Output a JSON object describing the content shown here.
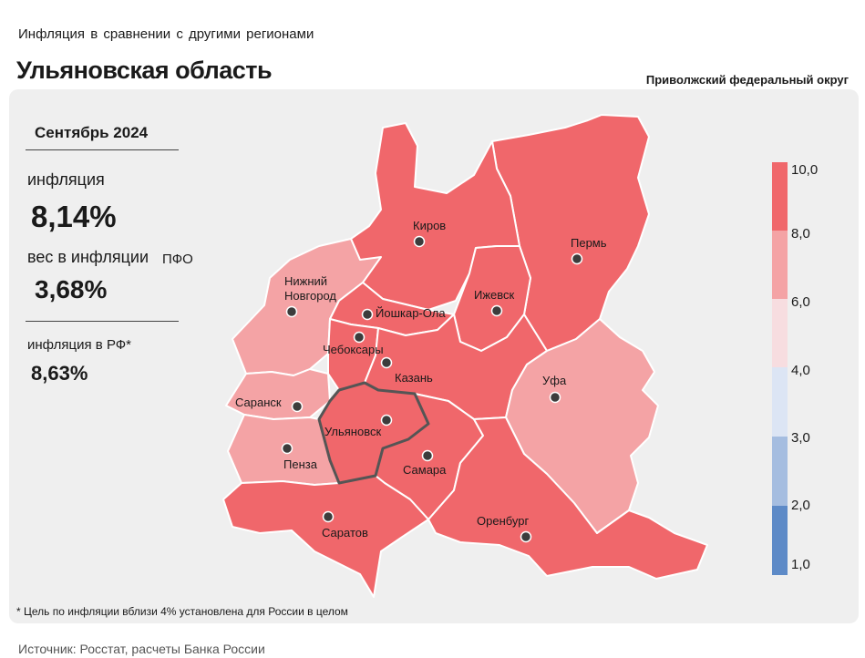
{
  "header": {
    "subtitle": "Инфляция в сравнении с другими регионами",
    "title": "Ульяновская область",
    "district": "Приволжский федеральный округ"
  },
  "stats": {
    "month": "Сентябрь 2024",
    "inflation_label": "инфляция",
    "inflation_value": "8,14%",
    "weight_label": "вес в инфляции",
    "weight_suffix": "ПФО",
    "weight_value": "3,68%",
    "rf_label": "инфляция в РФ*",
    "rf_value": "8,63%"
  },
  "cities": [
    {
      "name": "Киров",
      "inflation_band": "8-10"
    },
    {
      "name": "Пермь",
      "inflation_band": "8-10"
    },
    {
      "name": "Ижевск",
      "inflation_band": "8-10"
    },
    {
      "name": "Нижний Новгород",
      "inflation_band": "6-8"
    },
    {
      "name": "Йошкар-Ола",
      "inflation_band": "8-10"
    },
    {
      "name": "Чебоксары",
      "inflation_band": "8-10"
    },
    {
      "name": "Казань",
      "inflation_band": "8-10"
    },
    {
      "name": "Уфа",
      "inflation_band": "6-8"
    },
    {
      "name": "Саранск",
      "inflation_band": "6-8"
    },
    {
      "name": "Ульяновск",
      "inflation_band": "8-10"
    },
    {
      "name": "Пенза",
      "inflation_band": "6-8"
    },
    {
      "name": "Самара",
      "inflation_band": "8-10"
    },
    {
      "name": "Саратов",
      "inflation_band": "8-10"
    },
    {
      "name": "Оренбург",
      "inflation_band": "8-10"
    }
  ],
  "legend": {
    "ticks": [
      "10,0",
      "8,0",
      "6,0",
      "4,0",
      "3,0",
      "2,0",
      "1,0"
    ],
    "colors": [
      "#f0676b",
      "#f4a3a5",
      "#f7dde0",
      "#dce5f4",
      "#a5bde0",
      "#5d8ac7"
    ]
  },
  "colors": {
    "band_8_10": "#f0676b",
    "band_6_8": "#f4a3a5",
    "highlight_border": "#555555"
  },
  "footnote": "* Цель по инфляции вблизи 4% установлена для России в целом",
  "source": "Источник: Росстат, расчеты Банка России"
}
